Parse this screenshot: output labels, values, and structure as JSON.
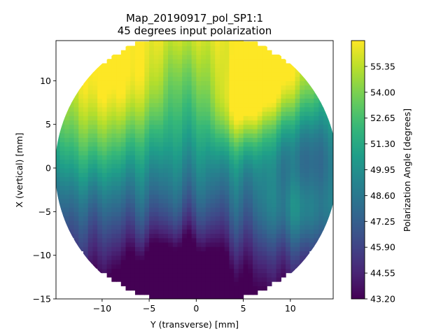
{
  "chart_data": {
    "type": "heatmap",
    "title": "Map_20190917_pol_SP1:1",
    "subtitle": "45 degrees input polarization",
    "xlabel": "Y (transverse) [mm]",
    "ylabel": "X (vertical) [mm]",
    "xlim": [
      -15,
      15
    ],
    "ylim": [
      -15,
      15
    ],
    "x_ticks": [
      "−10",
      "−5",
      "0",
      "5",
      "10"
    ],
    "x_tick_values": [
      -10,
      -5,
      0,
      5,
      10
    ],
    "y_ticks": [
      "−15",
      "−10",
      "−5",
      "0",
      "5",
      "10"
    ],
    "y_tick_values": [
      -15,
      -10,
      -5,
      0,
      5,
      10
    ],
    "colorbar": {
      "label": "Polarization Angle [degrees]",
      "colormap": "viridis",
      "range": [
        43.2,
        56.7
      ],
      "ticks": [
        "43.20",
        "44.55",
        "45.90",
        "47.25",
        "48.60",
        "49.95",
        "51.30",
        "52.65",
        "54.00",
        "55.35"
      ],
      "tick_values": [
        43.2,
        44.55,
        45.9,
        47.25,
        48.6,
        49.95,
        51.3,
        52.65,
        54.0,
        55.35
      ]
    },
    "sample_radius_mm": 15,
    "grid": false
  }
}
